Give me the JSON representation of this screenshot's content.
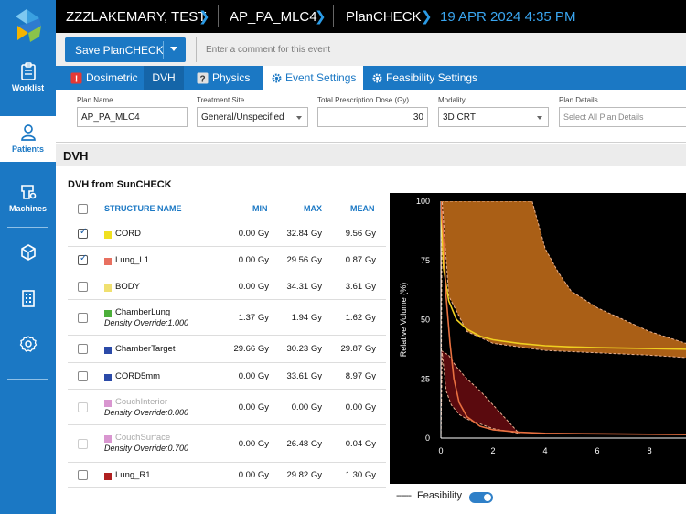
{
  "header": {
    "patient": "ZZZLAKEMARY, TEST",
    "plan": "AP_PA_MLC4",
    "module": "PlanCHECK",
    "datetime": "19 APR 2024 4:35 PM"
  },
  "sidebar": {
    "items": [
      {
        "label": "Worklist"
      },
      {
        "label": "Patients"
      },
      {
        "label": "Machines"
      }
    ]
  },
  "toolbar": {
    "save_label": "Save PlanCHECK",
    "comment_placeholder": "Enter a comment for this event"
  },
  "tabs": [
    {
      "label": "Dosimetric"
    },
    {
      "label": "DVH"
    },
    {
      "label": "Physics"
    },
    {
      "label": "Event Settings"
    },
    {
      "label": "Feasibility Settings"
    }
  ],
  "fields": {
    "plan_name": {
      "label": "Plan Name",
      "value": "AP_PA_MLC4"
    },
    "treatment_site": {
      "label": "Treatment Site",
      "value": "General/Unspecified"
    },
    "total_dose": {
      "label": "Total Prescription Dose (Gy)",
      "value": "30"
    },
    "modality": {
      "label": "Modality",
      "value": "3D CRT"
    },
    "plan_details": {
      "label": "Plan Details",
      "placeholder": "Select All Plan Details"
    }
  },
  "section": {
    "title": "DVH",
    "subtitle": "DVH from SunCHECK"
  },
  "table": {
    "headers": {
      "name": "STRUCTURE NAME",
      "min": "MIN",
      "max": "MAX",
      "mean": "MEAN"
    },
    "rows": [
      {
        "name": "CORD",
        "color": "#f0e020",
        "checked": true,
        "disabled": false,
        "min": "0.00 Gy",
        "max": "32.84 Gy",
        "mean": "9.56 Gy",
        "sub": ""
      },
      {
        "name": "Lung_L1",
        "color": "#e87060",
        "checked": true,
        "disabled": false,
        "min": "0.00 Gy",
        "max": "29.56 Gy",
        "mean": "0.87 Gy",
        "sub": ""
      },
      {
        "name": "BODY",
        "color": "#f0e070",
        "checked": false,
        "disabled": false,
        "min": "0.00 Gy",
        "max": "34.31 Gy",
        "mean": "3.61 Gy",
        "sub": ""
      },
      {
        "name": "ChamberLung",
        "color": "#4caf3a",
        "checked": false,
        "disabled": false,
        "min": "1.37 Gy",
        "max": "1.94 Gy",
        "mean": "1.62 Gy",
        "sub": "Density Override:1.000"
      },
      {
        "name": "ChamberTarget",
        "color": "#2b4aa8",
        "checked": false,
        "disabled": false,
        "min": "29.66 Gy",
        "max": "30.23 Gy",
        "mean": "29.87 Gy",
        "sub": ""
      },
      {
        "name": "CORD5mm",
        "color": "#2b4aa8",
        "checked": false,
        "disabled": false,
        "min": "0.00 Gy",
        "max": "33.61 Gy",
        "mean": "8.97 Gy",
        "sub": ""
      },
      {
        "name": "CouchInterior",
        "color": "#c050b0",
        "checked": false,
        "disabled": true,
        "min": "0.00 Gy",
        "max": "0.00 Gy",
        "mean": "0.00 Gy",
        "sub": "Density Override:0.000"
      },
      {
        "name": "CouchSurface",
        "color": "#c050b0",
        "checked": false,
        "disabled": true,
        "min": "0.00 Gy",
        "max": "26.48 Gy",
        "mean": "0.04 Gy",
        "sub": "Density Override:0.700"
      },
      {
        "name": "Lung_R1",
        "color": "#b02020",
        "checked": false,
        "disabled": false,
        "min": "0.00 Gy",
        "max": "29.82 Gy",
        "mean": "1.30 Gy",
        "sub": ""
      }
    ]
  },
  "legend": {
    "label": "Feasibility"
  },
  "chart_data": {
    "type": "line",
    "title": "",
    "xlabel": "",
    "ylabel": "Relative Volume (%)",
    "xlim": [
      0,
      9.4
    ],
    "ylim": [
      0,
      100
    ],
    "x_ticks": [
      0,
      2,
      4,
      6,
      8
    ],
    "y_ticks": [
      0,
      25,
      50,
      75,
      100
    ],
    "series": [
      {
        "name": "CORD",
        "color": "#f0d020",
        "x": [
          0,
          0.1,
          0.3,
          0.6,
          1.0,
          1.5,
          2.0,
          3.0,
          4.0,
          5.0,
          6.0,
          7.0,
          8.0,
          9.4
        ],
        "y": [
          100,
          72,
          58,
          50,
          46,
          43,
          41.5,
          40,
          39,
          38.5,
          38.2,
          38,
          37.8,
          37.5
        ]
      },
      {
        "name": "Lung_L1",
        "color": "#e87040",
        "x": [
          0,
          0.1,
          0.2,
          0.35,
          0.5,
          0.7,
          1.0,
          1.5,
          2.0,
          3.0,
          4.0,
          6.0,
          9.4
        ],
        "y": [
          100,
          85,
          60,
          40,
          25,
          15,
          9,
          5,
          3.5,
          2.5,
          2,
          1.8,
          1.5
        ]
      }
    ],
    "feasibility_bands": [
      {
        "name": "CORD feasibility",
        "color": "#c8701a",
        "upper_x": [
          0,
          3.5,
          4.0,
          4.5,
          5.0,
          6.0,
          7.0,
          8.0,
          9.4
        ],
        "upper_y": [
          100,
          100,
          80,
          70,
          62,
          55,
          50,
          45,
          40
        ],
        "lower_x": [
          0,
          0.05,
          0.3,
          1.0,
          2.0,
          4.0,
          6.0,
          8.0,
          9.4
        ],
        "lower_y": [
          0,
          100,
          60,
          45,
          40,
          37,
          36,
          35,
          34
        ]
      },
      {
        "name": "Lung_L1 feasibility",
        "color": "#6a0c10",
        "upper_x": [
          0,
          0.3,
          0.6,
          1.0,
          1.5,
          2.0,
          2.5,
          3.0
        ],
        "upper_y": [
          37,
          35,
          30,
          25,
          20,
          14,
          8,
          2
        ],
        "lower_x": [
          0,
          0.05,
          0.2,
          0.4,
          0.7,
          1.0,
          1.5,
          2.0,
          2.5,
          3.0
        ],
        "lower_y": [
          0,
          36,
          20,
          14,
          10,
          8,
          6,
          4,
          3,
          2
        ]
      }
    ]
  }
}
